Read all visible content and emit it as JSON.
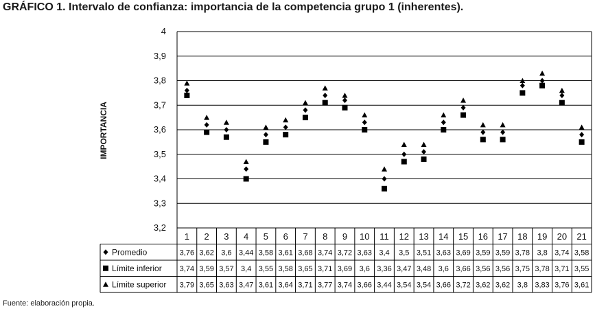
{
  "title": "GRÁFICO 1. Intervalo de confianza: importancia de la competencia grupo 1 (inherentes).",
  "source": "Fuente: elaboración propia.",
  "chart_data": {
    "type": "scatter",
    "ylabel": "IMPORTANCIA",
    "ylim": [
      3.2,
      4
    ],
    "yticks": [
      "4",
      "3,9",
      "3,8",
      "3,7",
      "3,6",
      "3,5",
      "3,4",
      "3,3",
      "3,2"
    ],
    "grid": true,
    "legend": "data table below the chart",
    "categories": [
      "1",
      "2",
      "3",
      "4",
      "5",
      "6",
      "7",
      "8",
      "9",
      "10",
      "11",
      "12",
      "13",
      "14",
      "15",
      "16",
      "17",
      "18",
      "19",
      "20",
      "21"
    ],
    "series": [
      {
        "name": "Promedio",
        "marker": "diamond",
        "values": [
          3.76,
          3.62,
          3.6,
          3.44,
          3.58,
          3.61,
          3.68,
          3.74,
          3.72,
          3.63,
          3.4,
          3.5,
          3.51,
          3.63,
          3.69,
          3.59,
          3.59,
          3.78,
          3.8,
          3.74,
          3.58
        ],
        "labels": [
          "3,76",
          "3,62",
          "3,6",
          "3,44",
          "3,58",
          "3,61",
          "3,68",
          "3,74",
          "3,72",
          "3,63",
          "3,4",
          "3,5",
          "3,51",
          "3,63",
          "3,69",
          "3,59",
          "3,59",
          "3,78",
          "3,8",
          "3,74",
          "3,58"
        ]
      },
      {
        "name": "Límite inferior",
        "marker": "square",
        "values": [
          3.74,
          3.59,
          3.57,
          3.4,
          3.55,
          3.58,
          3.65,
          3.71,
          3.69,
          3.6,
          3.36,
          3.47,
          3.48,
          3.6,
          3.66,
          3.56,
          3.56,
          3.75,
          3.78,
          3.71,
          3.55
        ],
        "labels": [
          "3,74",
          "3,59",
          "3,57",
          "3,4",
          "3,55",
          "3,58",
          "3,65",
          "3,71",
          "3,69",
          "3,6",
          "3,36",
          "3,47",
          "3,48",
          "3,6",
          "3,66",
          "3,56",
          "3,56",
          "3,75",
          "3,78",
          "3,71",
          "3,55"
        ]
      },
      {
        "name": "Límite superior",
        "marker": "triangle",
        "values": [
          3.79,
          3.65,
          3.63,
          3.47,
          3.61,
          3.64,
          3.71,
          3.77,
          3.74,
          3.66,
          3.44,
          3.54,
          3.54,
          3.66,
          3.72,
          3.62,
          3.62,
          3.8,
          3.83,
          3.76,
          3.61
        ],
        "labels": [
          "3,79",
          "3,65",
          "3,63",
          "3,47",
          "3,61",
          "3,64",
          "3,71",
          "3,77",
          "3,74",
          "3,66",
          "3,44",
          "3,54",
          "3,54",
          "3,66",
          "3,72",
          "3,62",
          "3,62",
          "3,8",
          "3,83",
          "3,76",
          "3,61"
        ]
      }
    ]
  }
}
